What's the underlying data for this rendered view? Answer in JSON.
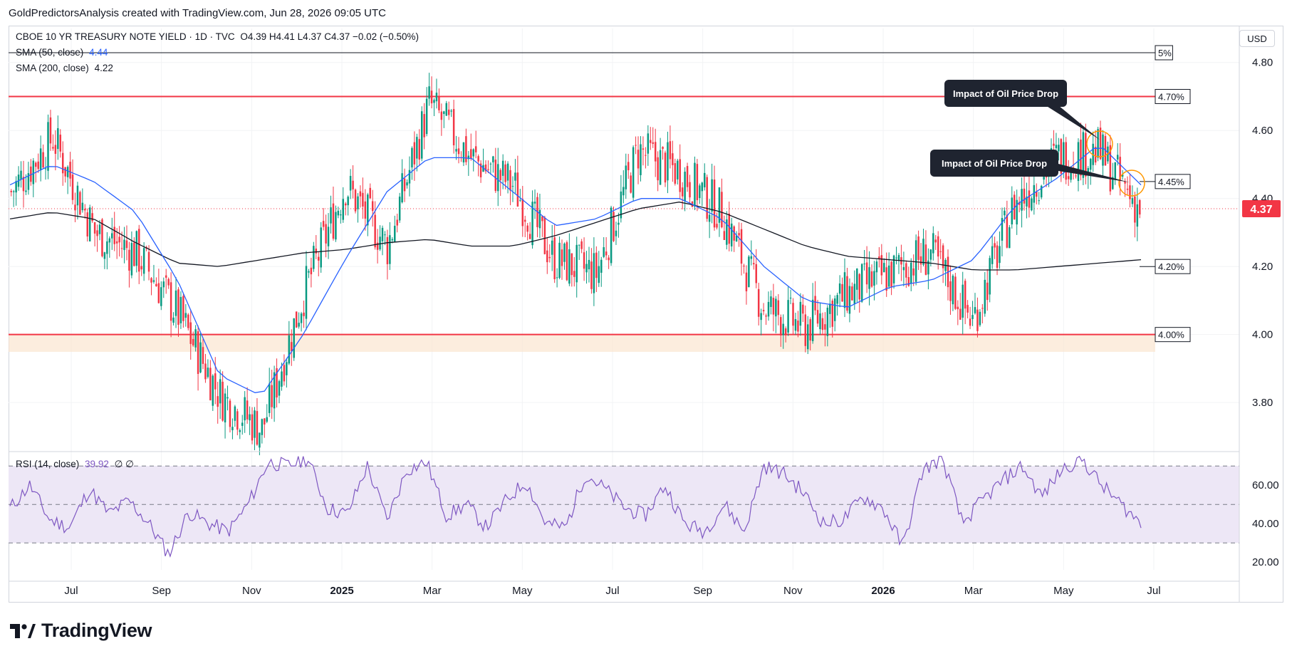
{
  "header": {
    "caption": "GoldPredictorsAnalysis created with TradingView.com, Jun 28, 2026 09:05 UTC"
  },
  "legend": {
    "symbol": "CBOE 10 YR TREASURY NOTE YIELD · 1D · TVC",
    "ohlc": "O4.39 H4.41 L4.37 C4.37 −0.02 (−0.50%)",
    "sma50_label": "SMA (50, close)",
    "sma50_value": "4.44",
    "sma200_label": "SMA (200, close)",
    "sma200_value": "4.22",
    "rsi_label": "RSI (14, close)",
    "rsi_value": "39.92",
    "rsi_extra": "∅ ∅"
  },
  "currency": "USD",
  "brand": {
    "name": "TradingView"
  },
  "colors": {
    "up": "#089981",
    "down": "#f23645",
    "sma50": "#2962ff",
    "sma200": "#131722",
    "level": "#f23645",
    "rsi_line": "#7e57c2",
    "rsi_band": "#ede7f6",
    "last_price_bg": "#f23645"
  },
  "chart_data": [
    {
      "type": "candlestick",
      "title": "CBOE 10 YR TREASURY NOTE YIELD · 1D · TVC",
      "x_tick_labels": [
        "Jul",
        "Sep",
        "Nov",
        "2025",
        "Mar",
        "May",
        "Jul",
        "Sep",
        "Nov",
        "2026",
        "Mar",
        "May",
        "Jul"
      ],
      "y_tick_labels": [
        "3.80",
        "4.00",
        "4.20",
        "4.40",
        "4.60",
        "4.80"
      ],
      "ylim": [
        3.66,
        4.9
      ],
      "last_price": "4.37",
      "series": [
        {
          "name": "SMA (50, close)",
          "style": "line",
          "color": "#2962ff",
          "values": [
            4.44,
            4.5,
            4.45,
            4.36,
            4.16,
            3.88,
            3.82,
            4.0,
            4.22,
            4.42,
            4.52,
            4.52,
            4.42,
            4.32,
            4.34,
            4.4,
            4.4,
            4.34,
            4.2,
            4.1,
            4.08,
            4.14,
            4.16,
            4.22,
            4.38,
            4.46,
            4.56,
            4.44
          ]
        },
        {
          "name": "SMA (200, close)",
          "style": "line",
          "color": "#131722",
          "values": [
            4.34,
            4.36,
            4.34,
            4.27,
            4.21,
            4.2,
            4.22,
            4.24,
            4.25,
            4.27,
            4.28,
            4.26,
            4.26,
            4.29,
            4.33,
            4.37,
            4.39,
            4.36,
            4.31,
            4.26,
            4.23,
            4.22,
            4.21,
            4.19,
            4.19,
            4.2,
            4.21,
            4.22
          ]
        },
        {
          "name": "Price (close)",
          "style": "candles",
          "values": [
            4.42,
            4.58,
            4.3,
            4.24,
            4.06,
            3.82,
            3.72,
            4.12,
            4.44,
            4.26,
            4.68,
            4.52,
            4.44,
            4.22,
            4.18,
            4.54,
            4.48,
            4.36,
            4.08,
            4.02,
            4.12,
            4.18,
            4.24,
            4.04,
            4.38,
            4.52,
            4.54,
            4.37
          ]
        }
      ],
      "levels": [
        {
          "value": "5%",
          "color": "#131722"
        },
        {
          "value": "4.70%",
          "color": "#f23645"
        },
        {
          "value": "4.45%",
          "color": "#131722"
        },
        {
          "value": "4.20%",
          "color": "#131722"
        },
        {
          "value": "4.00%",
          "color": "#f23645"
        }
      ],
      "annotations": [
        {
          "text": "Impact of Oil Price Drop",
          "target_price": 4.68
        },
        {
          "text": "Impact of Oil Price Drop",
          "target_price": 4.56
        }
      ]
    },
    {
      "type": "line",
      "title": "RSI (14, close)",
      "y_tick_labels": [
        "20.00",
        "40.00",
        "60.00"
      ],
      "ylim": [
        16,
        76
      ],
      "bands": [
        30,
        50,
        70
      ],
      "series": [
        {
          "name": "RSI (14, close)",
          "color": "#7e57c2",
          "values": [
            48,
            60,
            42,
            38,
            58,
            45,
            52,
            40,
            24,
            46,
            40,
            36,
            50,
            72,
            70,
            74,
            48,
            45,
            70,
            42,
            68,
            72,
            44,
            50,
            38,
            52,
            62,
            40,
            38,
            66,
            58,
            48,
            44,
            60,
            40,
            36,
            50,
            36,
            70,
            66,
            56,
            40,
            42,
            54,
            48,
            28,
            68,
            74,
            40,
            52,
            62,
            70,
            54,
            68,
            74,
            60,
            50,
            40
          ]
        }
      ]
    }
  ]
}
